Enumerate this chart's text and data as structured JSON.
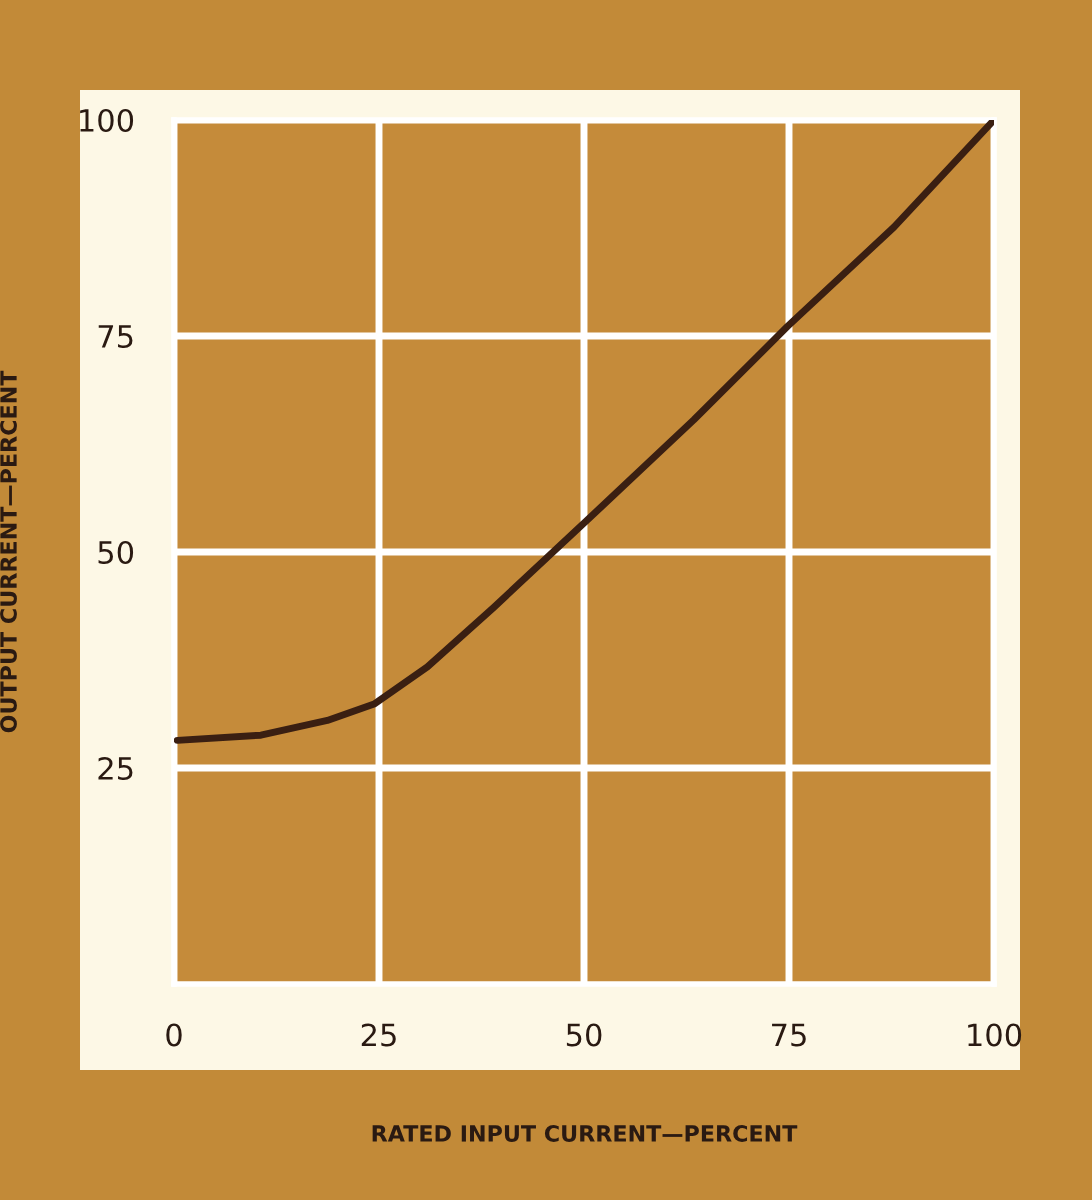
{
  "chart_data": {
    "type": "line",
    "xlabel": "RATED INPUT CURRENT—PERCENT",
    "ylabel": "OUTPUT CURRENT—PERCENT",
    "x": [
      0.4,
      10.6,
      18.7,
      24.4,
      30.9,
      39,
      50.4,
      63.4,
      74.8,
      87.8,
      100
    ],
    "series": [
      {
        "color": "#3a1f12",
        "values": [
          28.2,
          28.8,
          30.5,
          32.4,
          36.7,
          43.6,
          53.7,
          65.3,
          76.1,
          87.6,
          100
        ]
      }
    ],
    "xlim": [
      0,
      100
    ],
    "ylim": [
      0,
      100
    ],
    "xticks": [
      0,
      25,
      50,
      75,
      100
    ],
    "yticks": [
      25,
      50,
      75,
      100
    ],
    "grid": true,
    "marker": "none",
    "line_style": "solid"
  }
}
